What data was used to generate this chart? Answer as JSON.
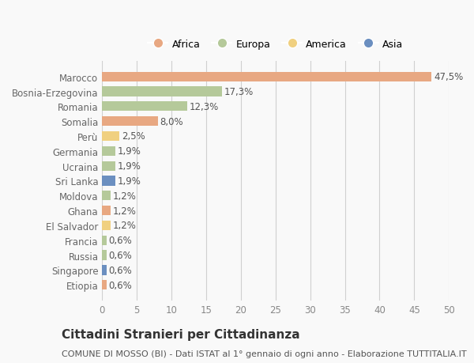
{
  "categories": [
    "Marocco",
    "Bosnia-Erzegovina",
    "Romania",
    "Somalia",
    "Perù",
    "Germania",
    "Ucraina",
    "Sri Lanka",
    "Moldova",
    "Ghana",
    "El Salvador",
    "Francia",
    "Russia",
    "Singapore",
    "Etiopia"
  ],
  "values": [
    47.5,
    17.3,
    12.3,
    8.0,
    2.5,
    1.9,
    1.9,
    1.9,
    1.2,
    1.2,
    1.2,
    0.6,
    0.6,
    0.6,
    0.6
  ],
  "labels": [
    "47,5%",
    "17,3%",
    "12,3%",
    "8,0%",
    "2,5%",
    "1,9%",
    "1,9%",
    "1,9%",
    "1,2%",
    "1,2%",
    "1,2%",
    "0,6%",
    "0,6%",
    "0,6%",
    "0,6%"
  ],
  "continents": [
    "Africa",
    "Europa",
    "Europa",
    "Africa",
    "America",
    "Europa",
    "Europa",
    "Asia",
    "Europa",
    "Africa",
    "America",
    "Europa",
    "Europa",
    "Asia",
    "Africa"
  ],
  "colors": {
    "Africa": "#E8A882",
    "Europa": "#B5C99A",
    "America": "#F0D080",
    "Asia": "#6B8FC0"
  },
  "legend_order": [
    "Africa",
    "Europa",
    "America",
    "Asia"
  ],
  "legend_colors": [
    "#E8A882",
    "#B5C99A",
    "#F0D080",
    "#6B8FC0"
  ],
  "xlim": [
    0,
    50
  ],
  "xticks": [
    0,
    5,
    10,
    15,
    20,
    25,
    30,
    35,
    40,
    45,
    50
  ],
  "title": "Cittadini Stranieri per Cittadinanza",
  "subtitle": "COMUNE DI MOSSO (BI) - Dati ISTAT al 1° gennaio di ogni anno - Elaborazione TUTTITALIA.IT",
  "bg_color": "#f9f9f9",
  "grid_color": "#d0d0d0",
  "bar_height": 0.65,
  "label_fontsize": 8.5,
  "tick_fontsize": 8.5,
  "title_fontsize": 11,
  "subtitle_fontsize": 8
}
